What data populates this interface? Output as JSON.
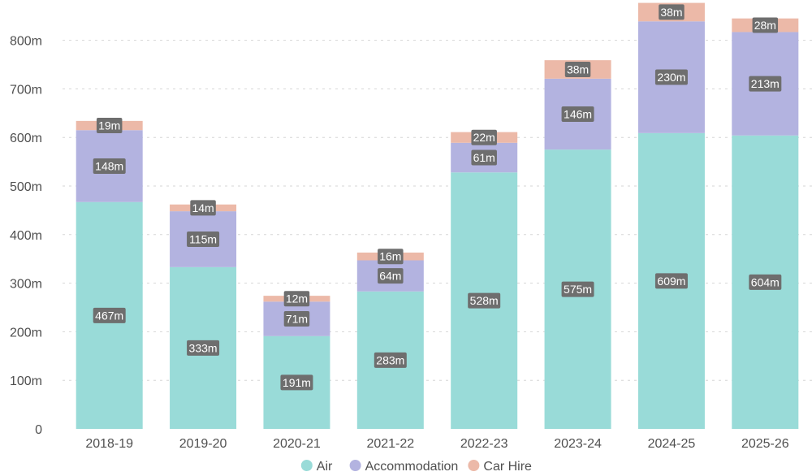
{
  "chart_data": {
    "type": "bar",
    "stacked": true,
    "categories": [
      "2018-19",
      "2019-20",
      "2020-21",
      "2021-22",
      "2022-23",
      "2023-24",
      "2024-25",
      "2025-26"
    ],
    "series": [
      {
        "name": "Air",
        "color": "#99DBD8",
        "values": [
          467,
          333,
          191,
          283,
          528,
          575,
          609,
          604
        ],
        "labels": [
          "467m",
          "333m",
          "191m",
          "283m",
          "528m",
          "575m",
          "609m",
          "604m"
        ]
      },
      {
        "name": "Accommodation",
        "color": "#B3B3E0",
        "values": [
          148,
          115,
          71,
          64,
          61,
          146,
          230,
          213
        ],
        "labels": [
          "148m",
          "115m",
          "71m",
          "64m",
          "61m",
          "146m",
          "230m",
          "213m"
        ]
      },
      {
        "name": "Car Hire",
        "color": "#ECB9A8",
        "values": [
          19,
          14,
          12,
          16,
          22,
          38,
          38,
          28
        ],
        "labels": [
          "19m",
          "14m",
          "12m",
          "16m",
          "22m",
          "38m",
          "38m",
          "28m"
        ]
      }
    ],
    "ylim": [
      0,
      880
    ],
    "yticks": [
      0,
      100,
      200,
      300,
      400,
      500,
      600,
      700,
      800
    ],
    "ytick_labels": [
      "0",
      "100m",
      "200m",
      "300m",
      "400m",
      "500m",
      "600m",
      "700m",
      "800m"
    ],
    "grid": true,
    "legend": "bottom-center",
    "title": "",
    "xlabel": "",
    "ylabel": "",
    "label_box_color": "#6E6E6E",
    "axis_text_color": "#505050",
    "grid_color": "#D6D6D6"
  }
}
